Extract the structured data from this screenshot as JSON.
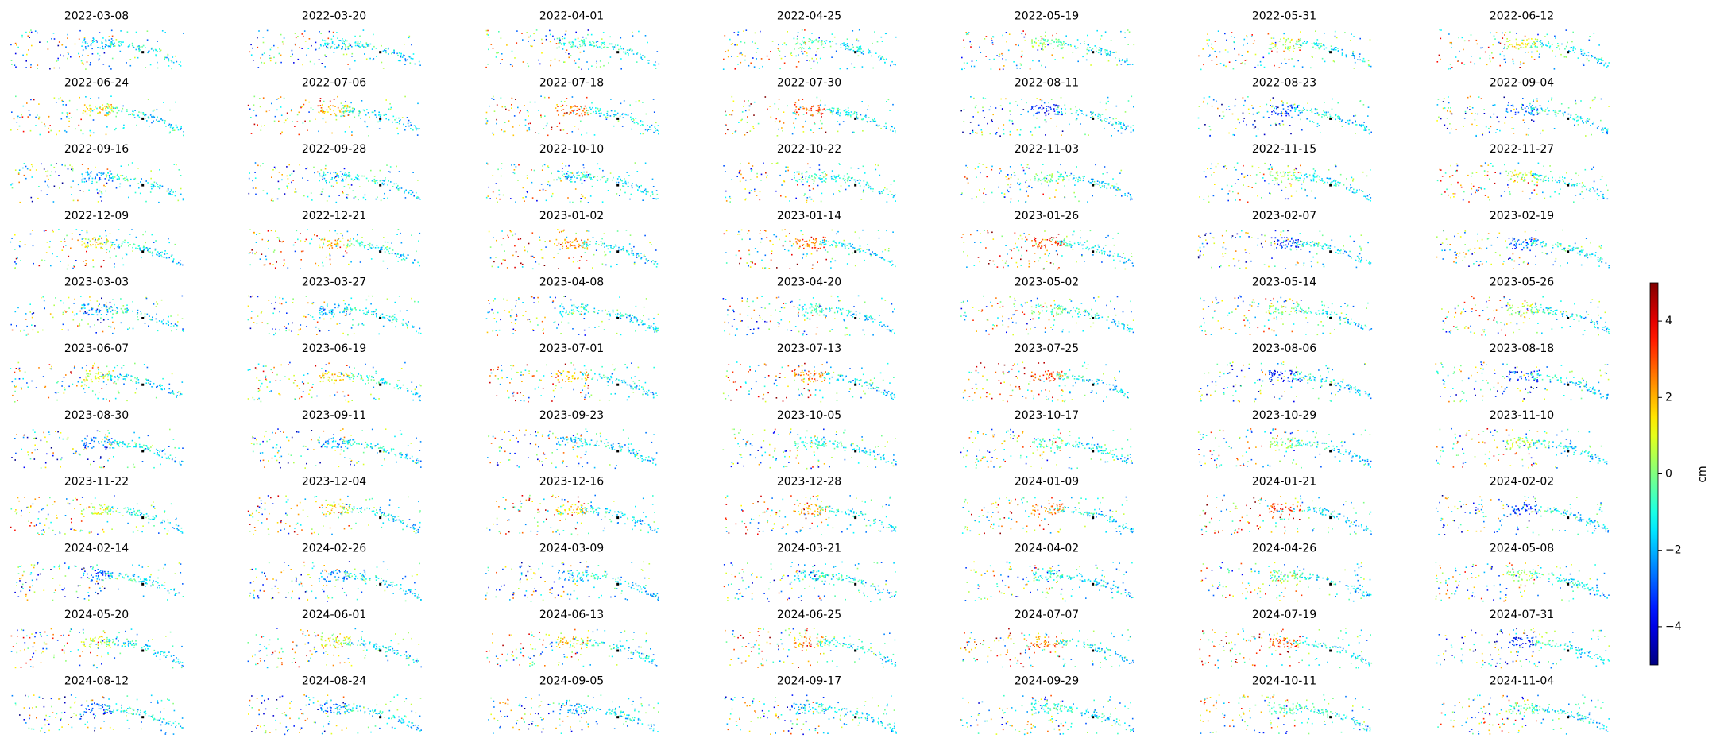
{
  "chart_data": {
    "type": "grid",
    "panels": [
      "2022-03-08",
      "2022-03-20",
      "2022-04-01",
      "2022-04-25",
      "2022-05-19",
      "2022-05-31",
      "2022-06-12",
      "2022-06-24",
      "2022-07-06",
      "2022-07-18",
      "2022-07-30",
      "2022-08-11",
      "2022-08-23",
      "2022-09-04",
      "2022-09-16",
      "2022-09-28",
      "2022-10-10",
      "2022-10-22",
      "2022-11-03",
      "2022-11-15",
      "2022-11-27",
      "2022-12-09",
      "2022-12-21",
      "2023-01-02",
      "2023-01-14",
      "2023-01-26",
      "2023-02-07",
      "2023-02-19",
      "2023-03-03",
      "2023-03-27",
      "2023-04-08",
      "2023-04-20",
      "2023-05-02",
      "2023-05-14",
      "2023-05-26",
      "2023-06-07",
      "2023-06-19",
      "2023-07-01",
      "2023-07-13",
      "2023-07-25",
      "2023-08-06",
      "2023-08-18",
      "2023-08-30",
      "2023-09-11",
      "2023-09-23",
      "2023-10-05",
      "2023-10-17",
      "2023-10-29",
      "2023-11-10",
      "2023-11-22",
      "2023-12-04",
      "2023-12-16",
      "2023-12-28",
      "2024-01-09",
      "2024-01-21",
      "2024-02-02",
      "2024-02-14",
      "2024-02-26",
      "2024-03-09",
      "2024-03-21",
      "2024-04-02",
      "2024-04-26",
      "2024-05-08",
      "2024-05-20",
      "2024-06-01",
      "2024-06-13",
      "2024-06-25",
      "2024-07-07",
      "2024-07-19",
      "2024-07-31",
      "2024-08-12",
      "2024-08-24",
      "2024-09-05",
      "2024-09-17",
      "2024-09-29",
      "2024-10-11",
      "2024-11-04"
    ],
    "columns": 7,
    "colorbar": {
      "label": "cm",
      "colormap": "jet",
      "lim": [
        -5,
        5
      ],
      "ticks": [
        {
          "value": -4,
          "label": "−4"
        },
        {
          "value": -2,
          "label": "−2"
        },
        0,
        2,
        4
      ]
    }
  }
}
